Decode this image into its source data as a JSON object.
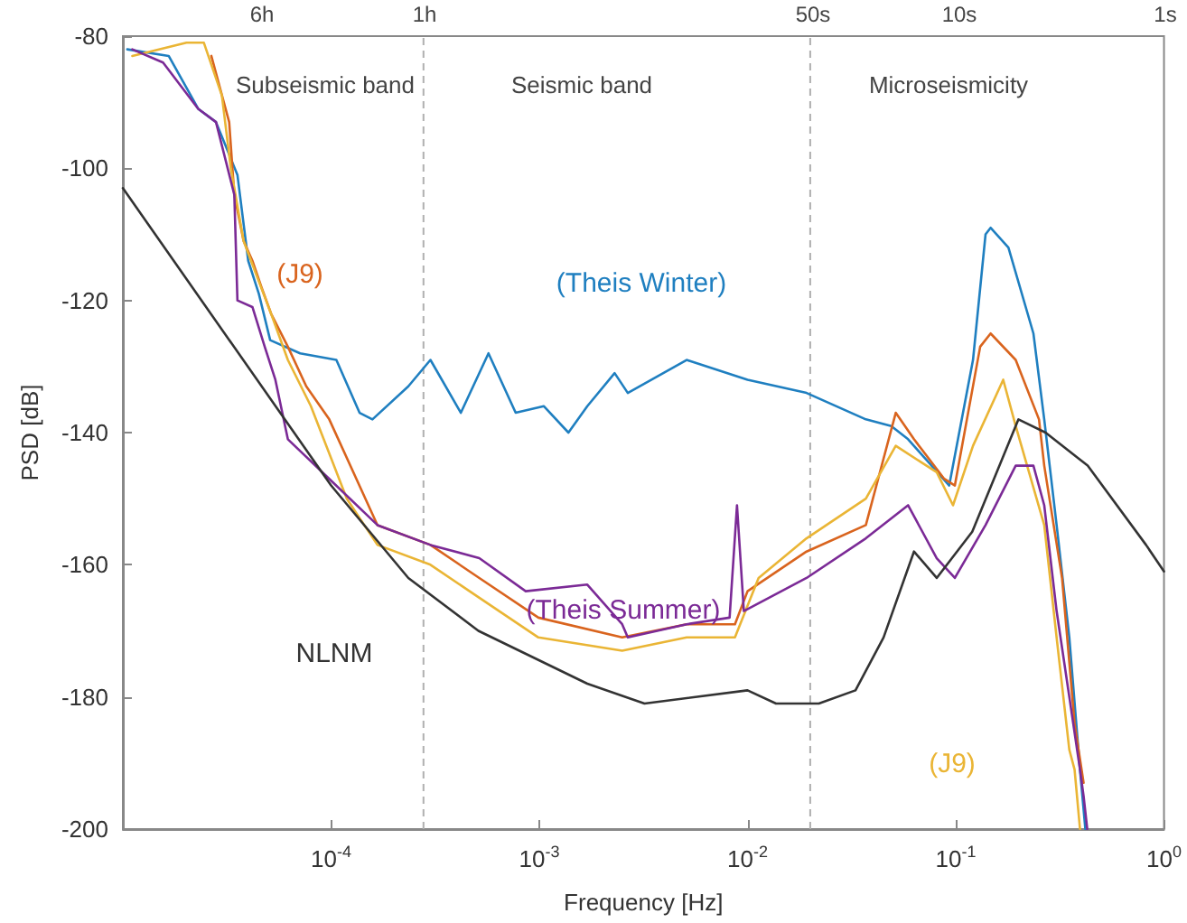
{
  "chart_data": {
    "type": "line",
    "xlabel": "Frequency [Hz]",
    "ylabel": "PSD [dB]",
    "log": "x",
    "xlim": [
      1e-05,
      1
    ],
    "xticks": [
      {
        "value": 0.0001,
        "label": "10$^{-4}$"
      },
      {
        "value": 0.001,
        "label": "10$^{-3}$"
      },
      {
        "value": 0.01,
        "label": "10$^{-2}$"
      },
      {
        "value": 0.1,
        "label": "10$^{-1}$"
      },
      {
        "value": 1,
        "label": "10$^{0}$"
      }
    ],
    "ylim": [
      -200,
      -80
    ],
    "yticks": [
      -200,
      -180,
      -160,
      -140,
      -120,
      -100,
      -80
    ],
    "grid": false,
    "marker": "none",
    "line_style": "solid",
    "series": [
      {
        "color": "#1f7fc0",
        "x": [
          1.05e-05,
          1.66e-05,
          2.3e-05,
          2.8e-05,
          3.55e-05,
          4e-05,
          4.5e-05,
          5.1e-05,
          7.1e-05,
          0.000106,
          0.000137,
          0.000158,
          0.000235,
          0.0003,
          0.00042,
          0.00057,
          0.00077,
          0.00105,
          0.00138,
          0.0017,
          0.0023,
          0.00266,
          0.0051,
          0.01,
          0.0192,
          0.037,
          0.049,
          0.059,
          0.093,
          0.121,
          0.139,
          0.147,
          0.179,
          0.236,
          0.266,
          0.305,
          0.351,
          0.395,
          0.419
        ],
        "values": [
          -82,
          -83,
          -91,
          -93,
          -101,
          -114,
          -119,
          -126,
          -128,
          -129,
          -137,
          -138,
          -133,
          -129,
          -137,
          -128,
          -137,
          -136,
          -140,
          -136,
          -131,
          -134,
          -129,
          -132,
          -134,
          -138,
          -139,
          -141,
          -148,
          -129,
          -110,
          -109,
          -112,
          -125,
          -138,
          -154,
          -171,
          -191,
          -200
        ]
      },
      {
        "color": "#d9641e",
        "x": [
          2.66e-05,
          3.24e-05,
          3.43e-05,
          3.8e-05,
          4.19e-05,
          4.63e-05,
          5.15e-05,
          6.2e-05,
          7.6e-05,
          9.8e-05,
          0.000167,
          0.0003,
          0.000515,
          0.00099,
          0.0025,
          0.0051,
          0.0087,
          0.01,
          0.0192,
          0.037,
          0.0515,
          0.063,
          0.088,
          0.099,
          0.131,
          0.147,
          0.194,
          0.251,
          0.266,
          0.324,
          0.372,
          0.411
        ],
        "values": [
          -83,
          -93,
          -104,
          -111,
          -114,
          -118,
          -122,
          -127,
          -133,
          -138,
          -154,
          -157,
          -162,
          -168,
          -171,
          -169,
          -169,
          -164,
          -158,
          -154,
          -137,
          -141,
          -147,
          -148,
          -127,
          -125,
          -129,
          -138,
          -145,
          -162,
          -184,
          -193
        ]
      },
      {
        "color": "#eab535",
        "x": [
          1.11e-05,
          2.02e-05,
          2.45e-05,
          2.99e-05,
          3.3e-05,
          3.8e-05,
          4.36e-05,
          5.15e-05,
          6.2e-05,
          8e-05,
          0.000119,
          0.000167,
          0.0003,
          0.000515,
          0.00099,
          0.0025,
          0.0051,
          0.0087,
          0.0113,
          0.0192,
          0.037,
          0.0515,
          0.081,
          0.097,
          0.121,
          0.169,
          0.194,
          0.266,
          0.305,
          0.351,
          0.372,
          0.395
        ],
        "values": [
          -83,
          -81,
          -81,
          -89,
          -100,
          -111,
          -116,
          -122,
          -129,
          -136,
          -150,
          -157,
          -160,
          -165,
          -171,
          -173,
          -171,
          -171,
          -162,
          -156,
          -150,
          -142,
          -146,
          -151,
          -142,
          -132,
          -139,
          -154,
          -171,
          -188,
          -191,
          -200
        ]
      },
      {
        "color": "#7b2a96",
        "x": [
          1.11e-05,
          1.56e-05,
          2.3e-05,
          2.8e-05,
          3.43e-05,
          3.55e-05,
          4.19e-05,
          4.8e-05,
          5.4e-05,
          6.2e-05,
          9.8e-05,
          0.000167,
          0.0003,
          0.000515,
          0.00086,
          0.0017,
          0.0025,
          0.00266,
          0.0051,
          0.0082,
          0.0089,
          0.0096,
          0.0192,
          0.037,
          0.059,
          0.081,
          0.099,
          0.139,
          0.194,
          0.236,
          0.266,
          0.305,
          0.351,
          0.395,
          0.411,
          0.428
        ],
        "values": [
          -82,
          -84,
          -91,
          -93,
          -104,
          -120,
          -121,
          -127,
          -132,
          -141,
          -147,
          -154,
          -157,
          -159,
          -164,
          -163,
          -169,
          -171,
          -169,
          -168,
          -151,
          -167,
          -162,
          -156,
          -151,
          -159,
          -162,
          -154,
          -145,
          -145,
          -151,
          -167,
          -180,
          -191,
          -195,
          -200
        ]
      },
      {
        "color": "#333333",
        "x": [
          1e-05,
          0.0001,
          0.000235,
          0.00051,
          0.0017,
          0.0032,
          0.01,
          0.0137,
          0.022,
          0.033,
          0.045,
          0.063,
          0.081,
          0.12,
          0.2,
          0.27,
          0.43,
          0.82,
          1
        ],
        "values": [
          -103,
          -148,
          -162,
          -170,
          -178,
          -181,
          -179,
          -181,
          -181,
          -179,
          -171,
          -158,
          -162,
          -155,
          -138,
          -140,
          -145,
          -157,
          -161
        ]
      }
    ],
    "ref_lines": [
      {
        "axis": "x",
        "value": 0.0002778,
        "color": "#b0b0b0",
        "line_style": "dashed"
      },
      {
        "axis": "x",
        "value": 0.02,
        "color": "#b0b0b0",
        "line_style": "dashed"
      }
    ],
    "annotations": [
      "Subseismic band",
      "Seismic band",
      "Microseismicity",
      "(J9)",
      "(Theis Winter)",
      "(Theis Summer)",
      "NLNM",
      "(J9)",
      "6h",
      "1h",
      "50s",
      "10s",
      "1s"
    ]
  }
}
